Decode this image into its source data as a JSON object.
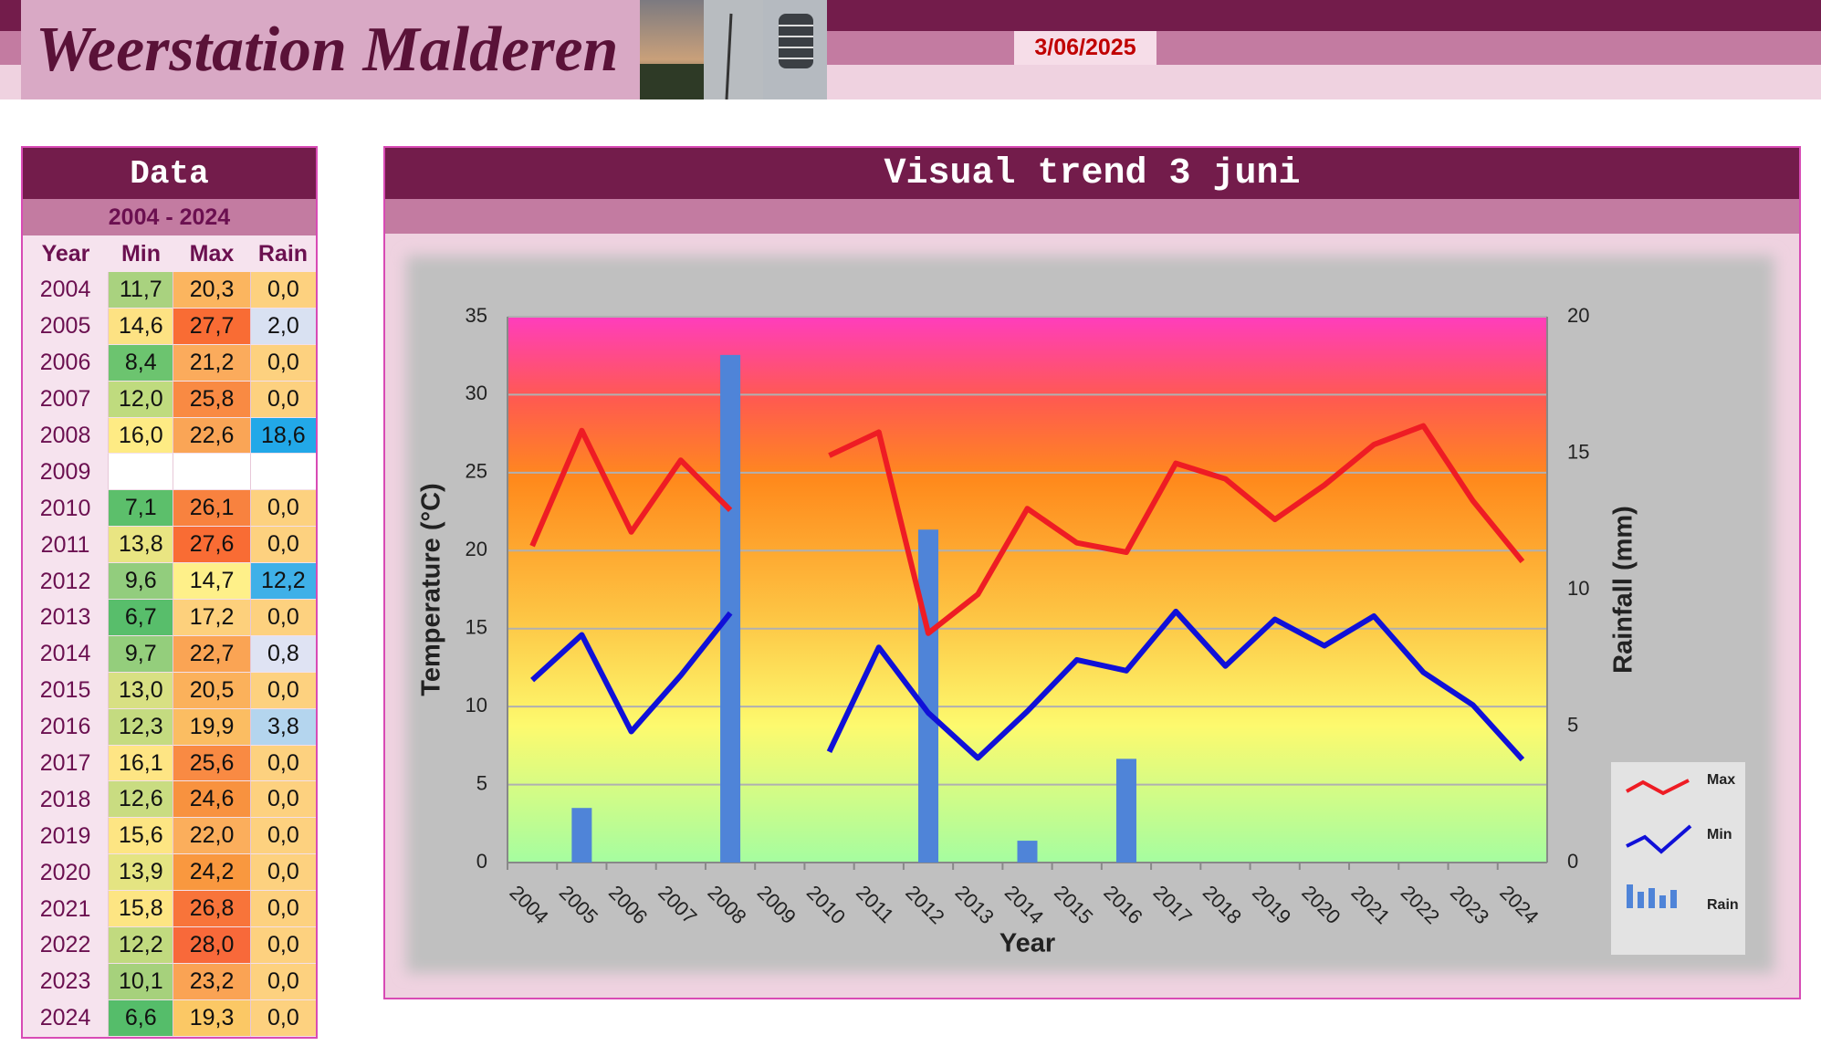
{
  "header": {
    "title": "Weerstation Malderen",
    "date": "3/06/2025"
  },
  "table": {
    "title": "Data",
    "range": "2004 - 2024",
    "columns": [
      "Year",
      "Min",
      "Max",
      "Rain"
    ],
    "rows": [
      [
        "2004",
        "11,7",
        "20,3",
        "0,0"
      ],
      [
        "2005",
        "14,6",
        "27,7",
        "2,0"
      ],
      [
        "2006",
        "8,4",
        "21,2",
        "0,0"
      ],
      [
        "2007",
        "12,0",
        "25,8",
        "0,0"
      ],
      [
        "2008",
        "16,0",
        "22,6",
        "18,6"
      ],
      [
        "2009",
        null,
        null,
        null
      ],
      [
        "2010",
        "7,1",
        "26,1",
        "0,0"
      ],
      [
        "2011",
        "13,8",
        "27,6",
        "0,0"
      ],
      [
        "2012",
        "9,6",
        "14,7",
        "12,2"
      ],
      [
        "2013",
        "6,7",
        "17,2",
        "0,0"
      ],
      [
        "2014",
        "9,7",
        "22,7",
        "0,8"
      ],
      [
        "2015",
        "13,0",
        "20,5",
        "0,0"
      ],
      [
        "2016",
        "12,3",
        "19,9",
        "3,8"
      ],
      [
        "2017",
        "16,1",
        "25,6",
        "0,0"
      ],
      [
        "2018",
        "12,6",
        "24,6",
        "0,0"
      ],
      [
        "2019",
        "15,6",
        "22,0",
        "0,0"
      ],
      [
        "2020",
        "13,9",
        "24,2",
        "0,0"
      ],
      [
        "2021",
        "15,8",
        "26,8",
        "0,0"
      ],
      [
        "2022",
        "12,2",
        "28,0",
        "0,0"
      ],
      [
        "2023",
        "10,1",
        "23,2",
        "0,0"
      ],
      [
        "2024",
        "6,6",
        "19,3",
        "0,0"
      ]
    ],
    "cell_colors": [
      [
        "#a9d27f",
        "#fbb55f",
        "#fdd17f"
      ],
      [
        "#fde283",
        "#f96c34",
        "#d9e1f2"
      ],
      [
        "#6cc46f",
        "#fbab5c",
        "#fdd17f"
      ],
      [
        "#bfdb7e",
        "#f98a43",
        "#fdd17f"
      ],
      [
        "#feeb84",
        "#faa556",
        "#22a8e8"
      ],
      [
        "#ffffff",
        "#ffffff",
        "#ffffff"
      ],
      [
        "#5cbf6b",
        "#f8823f",
        "#fdd17f"
      ],
      [
        "#e9e582",
        "#f96c34",
        "#fdd17f"
      ],
      [
        "#92cd7d",
        "#fef089",
        "#3fb0e8"
      ],
      [
        "#58be6b",
        "#fdd07c",
        "#fdd17f"
      ],
      [
        "#94ce7c",
        "#faa454",
        "#dfe3f3"
      ],
      [
        "#d8e083",
        "#fbb15b",
        "#fdd17f"
      ],
      [
        "#c4db80",
        "#fbbd62",
        "#b4d5ee"
      ],
      [
        "#fee584",
        "#f98a43",
        "#fdd17f"
      ],
      [
        "#c9dc81",
        "#f8923f",
        "#fdd17f"
      ],
      [
        "#fde583",
        "#fbae5c",
        "#fdd17f"
      ],
      [
        "#e4e482",
        "#f9983f",
        "#fdd17f"
      ],
      [
        "#fde583",
        "#f8743a",
        "#fdd17f"
      ],
      [
        "#c1da7f",
        "#f8693a",
        "#fdd17f"
      ],
      [
        "#a6d17c",
        "#faa354",
        "#fdd17f"
      ],
      [
        "#55bd6a",
        "#fbc865",
        "#fdd17f"
      ]
    ]
  },
  "chart_data": {
    "type": "line",
    "title": "Visual trend 3 juni",
    "categories": [
      "2004",
      "2005",
      "2006",
      "2007",
      "2008",
      "2009",
      "2010",
      "2011",
      "2012",
      "2013",
      "2014",
      "2015",
      "2016",
      "2017",
      "2018",
      "2019",
      "2020",
      "2021",
      "2022",
      "2023",
      "2024"
    ],
    "series": [
      {
        "name": "Max",
        "color": "#ee1c24",
        "type": "line",
        "values": [
          20.3,
          27.7,
          21.2,
          25.8,
          22.6,
          null,
          26.1,
          27.6,
          14.7,
          17.2,
          22.7,
          20.5,
          19.9,
          25.6,
          24.6,
          22.0,
          24.2,
          26.8,
          28.0,
          23.2,
          19.3
        ]
      },
      {
        "name": "Min",
        "color": "#1010d8",
        "type": "line",
        "values": [
          11.7,
          14.6,
          8.4,
          12.0,
          16.0,
          null,
          7.1,
          13.8,
          9.6,
          6.7,
          9.7,
          13.0,
          12.3,
          16.1,
          12.6,
          15.6,
          13.9,
          15.8,
          12.2,
          10.1,
          6.6
        ]
      },
      {
        "name": "Rain",
        "color": "#4f84d8",
        "type": "bar",
        "axis": "y2",
        "values": [
          0.0,
          2.0,
          0.0,
          0.0,
          18.6,
          null,
          0.0,
          0.0,
          12.2,
          0.0,
          0.8,
          0.0,
          3.8,
          0.0,
          0.0,
          0.0,
          0.0,
          0.0,
          0.0,
          0.0,
          0.0
        ]
      }
    ],
    "xlabel": "Year",
    "ylabel": "Temperature (°C)",
    "y2label": "Rainfall (mm)",
    "ylim": [
      0,
      35
    ],
    "yticks": [
      0,
      5,
      10,
      15,
      20,
      25,
      30,
      35
    ],
    "y2lim": [
      0,
      20
    ],
    "y2ticks": [
      0,
      5,
      10,
      15,
      20
    ],
    "grid": true,
    "legend": "right"
  }
}
